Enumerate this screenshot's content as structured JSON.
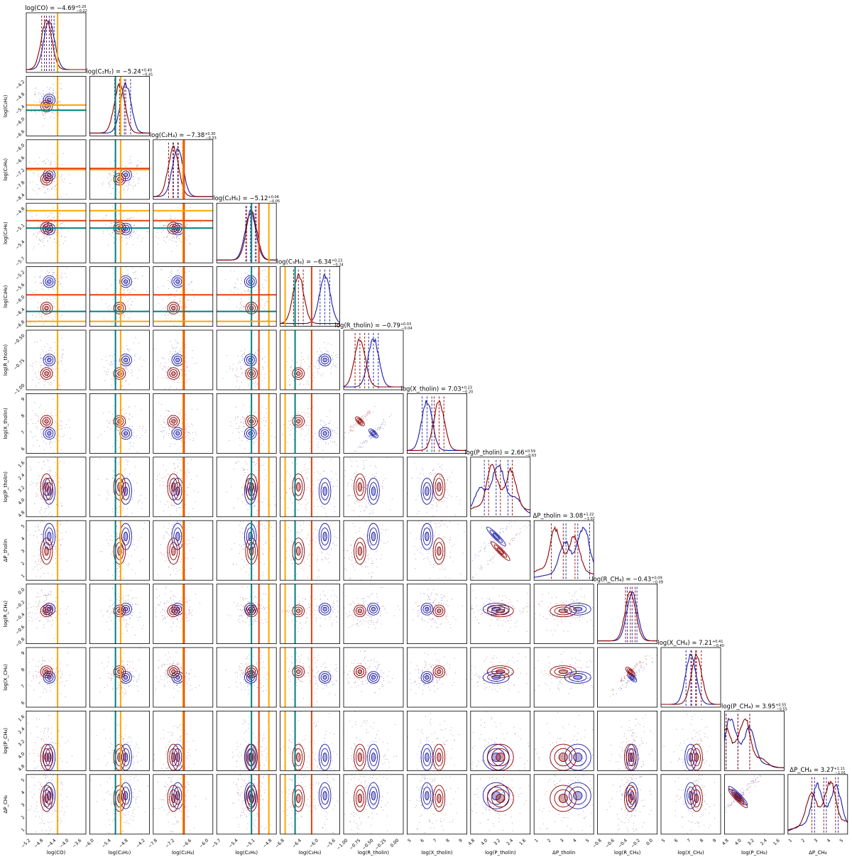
{
  "chart_data": {
    "type": "corner",
    "colors": {
      "model_a": "#1a1aa6",
      "model_b": "#8b0000",
      "ref_orange": "#ffa500",
      "ref_teal": "#008080",
      "ref_red": "#e8400c"
    },
    "titles": [
      "log(CO) = −4.69",
      "log(C₂H₂) = −5.24",
      "log(C₂H₄) = −7.38",
      "log(C₂H₆) = −5.12",
      "log(C₃H₈) = −6.34",
      "log(R_tholin) = −0.79",
      "log(X_tholin) = 7.03",
      "log(P_tholin) = 2.66",
      "ΔP_tholin = 3.08",
      "log(R_CH₄) = −0.43",
      "log(X_CH₄) = 7.21",
      "log(P_CH₄) = 3.95",
      "ΔP_CH₄ = 3.27"
    ],
    "title_errors": [
      {
        "plus": "+0.20",
        "minus": "−0.22"
      },
      {
        "plus": "+0.40",
        "minus": "−0.41"
      },
      {
        "plus": "+0.30",
        "minus": "−0.33"
      },
      {
        "plus": "+0.04",
        "minus": "−0.05"
      },
      {
        "plus": "+0.23",
        "minus": "−0.24"
      },
      {
        "plus": "+0.03",
        "minus": "−0.04"
      },
      {
        "plus": "+0.23",
        "minus": "−0.20"
      },
      {
        "plus": "+0.59",
        "minus": "−0.63"
      },
      {
        "plus": "+1.22",
        "minus": "−1.02"
      },
      {
        "plus": "+0.09",
        "minus": "−0.09"
      },
      {
        "plus": "+0.41",
        "minus": "−0.40"
      },
      {
        "plus": "+0.55",
        "minus": "−0.55"
      },
      {
        "plus": "+1.11",
        "minus": "−1.01"
      }
    ],
    "params": [
      {
        "label": "log(CO)",
        "range": [
          -5.4,
          -3.4
        ],
        "ticks": [
          "−5.2",
          "−4.8",
          "−4.4",
          "−4.0",
          "−3.6"
        ],
        "yticks": [
          "−4.2",
          "−4.8",
          "−5.4",
          "−6.0",
          "−6.6"
        ]
      },
      {
        "label": "log(C₂H₂)",
        "range": [
          -6.8,
          -3.9
        ],
        "ticks": [
          "−6.0",
          "−5.4",
          "−4.8",
          "−4.2"
        ],
        "yticks": [
          "−4.2",
          "−4.8",
          "−5.4",
          "−6.0",
          "−6.6"
        ]
      },
      {
        "label": "log(C₂H₄)",
        "range": [
          -8.4,
          -5.6
        ],
        "ticks": [
          "−7.8",
          "−7.2",
          "−6.6",
          "−6.0"
        ],
        "yticks": [
          "−6.0",
          "−6.6",
          "−7.2",
          "−7.8",
          "−8.4"
        ]
      },
      {
        "label": "log(C₂H₆)",
        "range": [
          -5.8,
          -4.6
        ],
        "ticks": [
          "−5.7",
          "−5.4",
          "−5.1",
          "−4.8"
        ],
        "yticks": [
          "−4.8",
          "−5.1",
          "−5.4",
          "−5.7"
        ]
      },
      {
        "label": "log(C₃H₈)",
        "range": [
          -6.9,
          -5.1
        ],
        "ticks": [
          "−6.8",
          "−6.4",
          "−6.0",
          "−5.6"
        ],
        "yticks": [
          "−5.2",
          "−5.6",
          "−6.0",
          "−6.4",
          "−6.8"
        ]
      },
      {
        "label": "log(R_tholin)",
        "range": [
          -1.1,
          0.0
        ],
        "ticks": [
          "−1.00",
          "−0.75",
          "−0.50",
          "−0.25",
          "0.00"
        ],
        "yticks": [
          "−0.50",
          "−0.75",
          "−1.00"
        ]
      },
      {
        "label": "log(X_tholin)",
        "range": [
          4.8,
          9.0
        ],
        "ticks": [
          "5",
          "6",
          "7",
          "8",
          "9"
        ],
        "yticks": [
          "9",
          "8",
          "7",
          "6"
        ]
      },
      {
        "label": "log(P_tholin)",
        "range": [
          4.8,
          0.6
        ],
        "ticks": [
          "4.8",
          "4.0",
          "3.2",
          "2.4",
          "1.6"
        ],
        "yticks": [
          "1.6",
          "2.4",
          "3.2",
          "4.0",
          "4.8"
        ]
      },
      {
        "label": "ΔP_tholin",
        "range": [
          0.5,
          5.0
        ],
        "ticks": [
          "1",
          "2",
          "3",
          "4",
          "5"
        ],
        "yticks": [
          "5",
          "4",
          "3",
          "2",
          "1"
        ]
      },
      {
        "label": "log(R_CH₄)",
        "range": [
          -1.0,
          0.0
        ],
        "ticks": [
          "−0.8",
          "−0.6",
          "−0.4",
          "−0.2",
          "0.0"
        ],
        "yticks": [
          "0.0",
          "−0.2",
          "−0.4",
          "−0.6",
          "−0.8"
        ]
      },
      {
        "label": "log(X_CH₄)",
        "range": [
          4.8,
          9.0
        ],
        "ticks": [
          "5",
          "6",
          "7",
          "8",
          "9"
        ],
        "yticks": [
          "9",
          "8",
          "7",
          "6"
        ]
      },
      {
        "label": "log(P_CH₄)",
        "range": [
          4.8,
          0.8
        ],
        "ticks": [
          "4.8",
          "4.0",
          "3.2",
          "2.4",
          "1.6"
        ],
        "yticks": [
          "1.6",
          "2.4",
          "3.2",
          "4.0",
          "4.8"
        ]
      },
      {
        "label": "ΔP_CH₄",
        "range": [
          0.5,
          5.0
        ],
        "ticks": [
          "1",
          "2",
          "3",
          "4",
          "5"
        ],
        "yticks": [
          "5",
          "4",
          "3",
          "2",
          "1"
        ]
      }
    ],
    "posteriors": {
      "model_a": {
        "centers": [
          -4.63,
          -5.05,
          -7.25,
          -5.12,
          -5.55,
          -0.55,
          6.2,
          3.0,
          3.8,
          -0.42,
          6.9,
          3.9,
          3.4
        ]
      },
      "model_b": {
        "centers": [
          -4.72,
          -5.35,
          -7.45,
          -5.1,
          -6.35,
          -0.8,
          7.05,
          2.7,
          2.7,
          -0.45,
          7.3,
          3.9,
          3.2
        ]
      }
    },
    "reference_lines": [
      {
        "param": 0,
        "values": [
          {
            "v": -4.35,
            "color": "ref_orange"
          }
        ]
      },
      {
        "param": 1,
        "values": [
          {
            "v": -5.55,
            "color": "ref_teal"
          },
          {
            "v": -5.3,
            "color": "ref_orange"
          }
        ]
      },
      {
        "param": 2,
        "values": [
          {
            "v": -7.0,
            "color": "ref_orange"
          },
          {
            "v": -6.95,
            "color": "ref_red"
          }
        ]
      },
      {
        "param": 3,
        "values": [
          {
            "v": -5.1,
            "color": "ref_teal"
          },
          {
            "v": -4.95,
            "color": "ref_red"
          },
          {
            "v": -4.75,
            "color": "ref_orange"
          }
        ]
      },
      {
        "param": 4,
        "values": [
          {
            "v": -6.75,
            "color": "ref_orange"
          },
          {
            "v": -6.45,
            "color": "ref_teal"
          },
          {
            "v": -5.95,
            "color": "ref_red"
          }
        ]
      }
    ]
  }
}
